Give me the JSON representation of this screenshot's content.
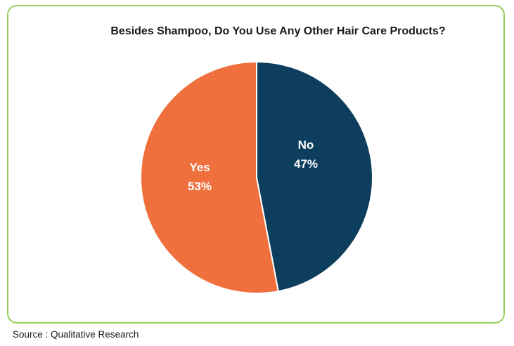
{
  "source": "Source : Qualitative Research",
  "frame_color": "#94ce58",
  "chart_data": {
    "type": "pie",
    "title": "Besides Shampoo, Do You Use Any Other Hair Care Products?",
    "slices": [
      {
        "label": "Yes",
        "value": 53,
        "value_label": "53%",
        "color": "#f0703d",
        "text_color": "#ffffff"
      },
      {
        "label": "No",
        "value": 47,
        "value_label": "47%",
        "color": "#0e3e5e",
        "text_color": "#ffffff"
      }
    ],
    "start_angle_deg": 0,
    "direction": "counterclockwise",
    "separator_color": "#ffffff",
    "legend": "none",
    "data_labels": "inside",
    "background": "#ffffff"
  }
}
